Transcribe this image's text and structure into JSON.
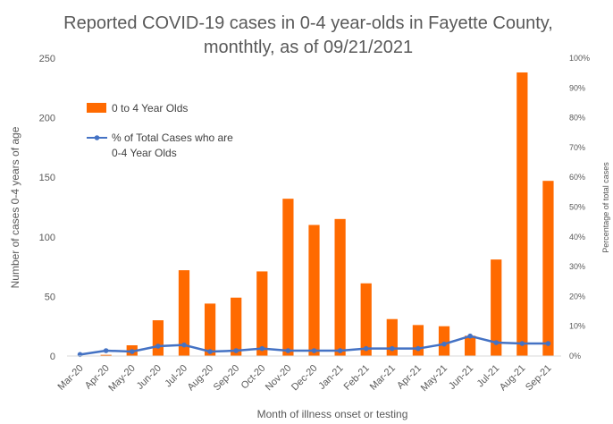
{
  "chart_data": {
    "type": "bar",
    "title_line1": "Reported COVID-19 cases in 0-4 year-olds in Fayette County,",
    "title_line2": "monthtly, as of 09/21/2021",
    "xlabel": "Month of illness onset or testing",
    "ylabel": "Number of cases 0-4 years of age",
    "y2label": "Percentage of total cases",
    "categories": [
      "Mar-20",
      "Apr-20",
      "May-20",
      "Jun-20",
      "Jul-20",
      "Aug-20",
      "Sep-20",
      "Oct-20",
      "Nov-20",
      "Dec-20",
      "Jan-21",
      "Feb-21",
      "Mar-21",
      "Apr-21",
      "May-21",
      "Jun-21",
      "Jul-21",
      "Aug-21",
      "Sep-21"
    ],
    "ylim": [
      0,
      250
    ],
    "yticks": [
      "0",
      "50",
      "100",
      "150",
      "200",
      "250"
    ],
    "y2lim": [
      0,
      100
    ],
    "y2ticks": [
      "0%",
      "10%",
      "20%",
      "30%",
      "40%",
      "50%",
      "60%",
      "70%",
      "80%",
      "90%",
      "100%"
    ],
    "grid": false,
    "legend_position": "top-left",
    "series": [
      {
        "name": "0 to 4 Year Olds",
        "type": "bar",
        "axis": "left",
        "color": "#ff6a00",
        "values": [
          0,
          1,
          9,
          30,
          72,
          44,
          49,
          71,
          132,
          110,
          115,
          61,
          31,
          26,
          25,
          17,
          81,
          238,
          147
        ]
      },
      {
        "name_line1": "% of Total Cases who are",
        "name_line2": "0-4 Year Olds",
        "type": "line",
        "axis": "right",
        "color": "#4472c4",
        "values": [
          0.5,
          1.8,
          1.5,
          3.3,
          3.7,
          1.5,
          1.8,
          2.5,
          1.8,
          1.8,
          1.8,
          2.5,
          2.5,
          2.5,
          4,
          6.7,
          4.5,
          4.2,
          4.2
        ]
      }
    ]
  }
}
